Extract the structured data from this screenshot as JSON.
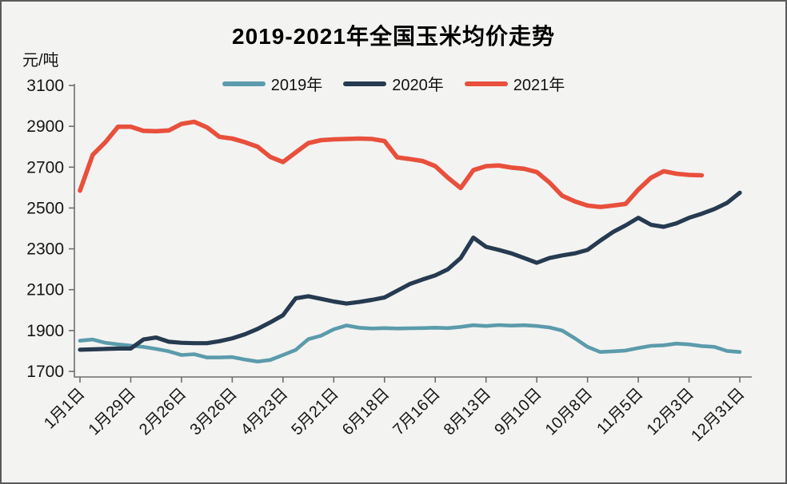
{
  "chart_data": {
    "type": "line",
    "title": "2019-2021年全国玉米均价走势",
    "unit_label": "元/吨",
    "xlabel": "",
    "ylabel": "元/吨",
    "ylim": [
      1700,
      3100
    ],
    "y_ticks": [
      3100,
      2900,
      2700,
      2500,
      2300,
      2100,
      1900,
      1700
    ],
    "x_tick_labels": [
      "1月1日",
      "1月29日",
      "2月26日",
      "3月26日",
      "4月23日",
      "5月21日",
      "6月18日",
      "7月16日",
      "8月13日",
      "9月10日",
      "10月8日",
      "11月5日",
      "12月3日",
      "12月31日"
    ],
    "x_resolution": "weekly",
    "weeks_per_tick": 4,
    "total_weeks": 53,
    "grid": false,
    "legend_position": "top",
    "colors": {
      "axis": "#6e6e6e",
      "text": "#161616",
      "background": "#f3f3f2",
      "series_2019": "#5b9bab",
      "series_2020": "#263a50",
      "series_2021": "#e8503c"
    },
    "series": [
      {
        "name": "2019年",
        "color": "#5b9bab",
        "values": [
          1850,
          1856,
          1840,
          1832,
          1826,
          1820,
          1810,
          1798,
          1780,
          1784,
          1768,
          1768,
          1770,
          1758,
          1748,
          1756,
          1780,
          1805,
          1858,
          1875,
          1906,
          1925,
          1914,
          1910,
          1912,
          1910,
          1911,
          1912,
          1914,
          1912,
          1918,
          1926,
          1922,
          1927,
          1924,
          1926,
          1922,
          1915,
          1900,
          1862,
          1820,
          1795,
          1798,
          1802,
          1814,
          1825,
          1828,
          1836,
          1832,
          1824,
          1820,
          1800,
          1795
        ]
      },
      {
        "name": "2020年",
        "color": "#263a50",
        "values": [
          1806,
          1808,
          1810,
          1812,
          1812,
          1856,
          1866,
          1845,
          1840,
          1838,
          1838,
          1848,
          1862,
          1882,
          1908,
          1940,
          1975,
          2058,
          2068,
          2055,
          2042,
          2032,
          2040,
          2050,
          2062,
          2095,
          2128,
          2150,
          2170,
          2200,
          2255,
          2355,
          2310,
          2295,
          2278,
          2255,
          2232,
          2255,
          2268,
          2278,
          2295,
          2340,
          2382,
          2415,
          2452,
          2418,
          2408,
          2425,
          2452,
          2472,
          2495,
          2525,
          2575
        ]
      },
      {
        "name": "2021年",
        "color": "#e8503c",
        "values": [
          2585,
          2760,
          2822,
          2898,
          2898,
          2878,
          2876,
          2880,
          2912,
          2922,
          2895,
          2848,
          2840,
          2822,
          2800,
          2750,
          2725,
          2772,
          2818,
          2832,
          2836,
          2838,
          2840,
          2838,
          2828,
          2748,
          2740,
          2730,
          2705,
          2648,
          2598,
          2685,
          2705,
          2708,
          2698,
          2692,
          2676,
          2625,
          2560,
          2532,
          2512,
          2505,
          2512,
          2520,
          2590,
          2648,
          2680,
          2668,
          2662,
          2660
        ]
      }
    ]
  }
}
